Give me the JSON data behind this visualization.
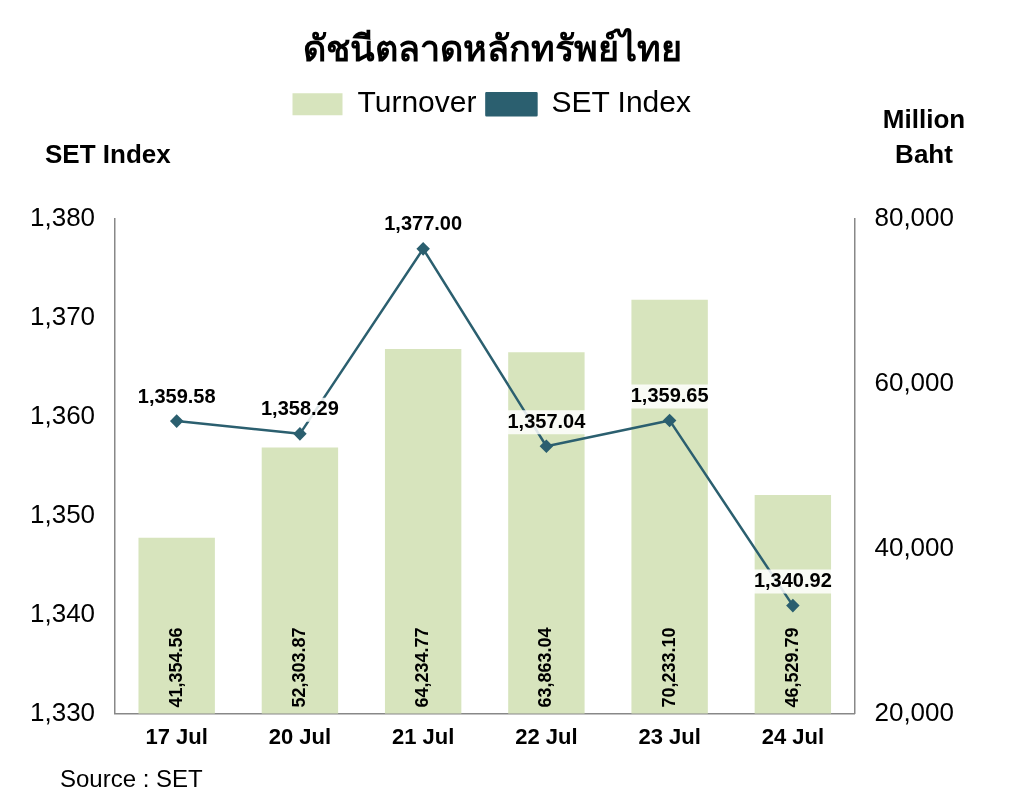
{
  "chart_data": {
    "type": "bar",
    "title": "ดัชนีตลาดหลักทรัพย์ไทย",
    "ylabel": "SET Index",
    "y2label": "Million Baht",
    "categories": [
      "17 Jul",
      "20 Jul",
      "21 Jul",
      "22 Jul",
      "23 Jul",
      "24 Jul"
    ],
    "series": [
      {
        "name": "Turnover",
        "axis": "y2",
        "color": "#d7e4bd",
        "values": [
          41354.56,
          52303.87,
          64234.77,
          63863.04,
          70233.1,
          46529.79
        ],
        "value_labels": [
          "41,354.56",
          "52,303.87",
          "64,234.77",
          "63,863.04",
          "70,233.10",
          "46,529.79"
        ]
      },
      {
        "name": "SET Index",
        "type": "line",
        "axis": "y",
        "color": "#2b5f6f",
        "values": [
          1359.58,
          1358.29,
          1377.0,
          1357.04,
          1359.65,
          1340.92
        ],
        "value_labels": [
          "1,359.58",
          "1,358.29",
          "1,377.00",
          "1,357.04",
          "1,359.65",
          "1,340.92"
        ]
      }
    ],
    "ylim": [
      1330,
      1380
    ],
    "yticks": [
      {
        "value": 1330,
        "label": "1,330"
      },
      {
        "value": 1340,
        "label": "1,340"
      },
      {
        "value": 1350,
        "label": "1,350"
      },
      {
        "value": 1360,
        "label": "1,360"
      },
      {
        "value": 1370,
        "label": "1,370"
      },
      {
        "value": 1380,
        "label": "1,380"
      }
    ],
    "y2lim": [
      20000,
      80000
    ],
    "y2ticks": [
      {
        "value": 20000,
        "label": "20,000"
      },
      {
        "value": 40000,
        "label": "40,000"
      },
      {
        "value": 60000,
        "label": "60,000"
      },
      {
        "value": 80000,
        "label": "80,000"
      }
    ],
    "legend": "top",
    "grid": false,
    "marker": "diamond",
    "line_style": "solid",
    "annotations": [
      "Source : SET"
    ]
  }
}
